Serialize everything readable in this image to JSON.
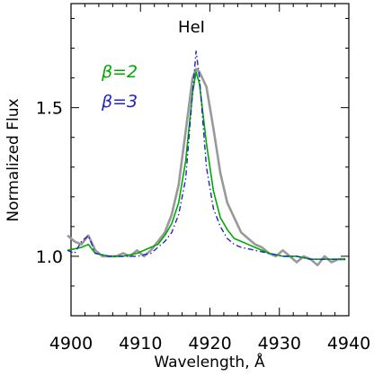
{
  "chart_data": {
    "type": "line",
    "title": "",
    "annotation": "HeI",
    "xlabel": "Wavelength, Å",
    "ylabel": "Normalized Flux",
    "xlim": [
      4900,
      4940
    ],
    "ylim": [
      0.8,
      1.85
    ],
    "x_ticks": [
      4900,
      4910,
      4920,
      4930,
      4940
    ],
    "x_tick_labels": [
      "4900",
      "4910",
      "4920",
      "4930",
      "4940"
    ],
    "y_ticks": [
      1.0,
      1.5
    ],
    "y_tick_labels": [
      "1.0",
      "1.5"
    ],
    "grid": false,
    "legend_position": "top-left",
    "series": [
      {
        "color": "#999999",
        "style": "solid",
        "points": [
          [
            4899.5,
            1.07
          ],
          [
            4900.5,
            1.05
          ],
          [
            4901.5,
            1.04
          ],
          [
            4902.5,
            1.07
          ],
          [
            4903.5,
            1.02
          ],
          [
            4904.5,
            1.0
          ],
          [
            4905.5,
            1.0
          ],
          [
            4906.5,
            1.0
          ],
          [
            4907.5,
            1.01
          ],
          [
            4908.5,
            1.0
          ],
          [
            4909.5,
            1.02
          ],
          [
            4910.5,
            1.0
          ],
          [
            4911.5,
            1.02
          ],
          [
            4912.5,
            1.05
          ],
          [
            4913.5,
            1.08
          ],
          [
            4914.5,
            1.14
          ],
          [
            4915.5,
            1.24
          ],
          [
            4916.5,
            1.42
          ],
          [
            4917.5,
            1.6
          ],
          [
            4918.0,
            1.63
          ],
          [
            4918.5,
            1.62
          ],
          [
            4919.5,
            1.57
          ],
          [
            4920.5,
            1.43
          ],
          [
            4921.5,
            1.28
          ],
          [
            4922.5,
            1.18
          ],
          [
            4923.5,
            1.13
          ],
          [
            4924.5,
            1.08
          ],
          [
            4925.5,
            1.06
          ],
          [
            4926.5,
            1.04
          ],
          [
            4927.5,
            1.03
          ],
          [
            4928.5,
            1.01
          ],
          [
            4929.5,
            1.0
          ],
          [
            4930.5,
            1.02
          ],
          [
            4931.5,
            1.0
          ],
          [
            4932.5,
            0.98
          ],
          [
            4933.5,
            1.0
          ],
          [
            4934.5,
            0.99
          ],
          [
            4935.5,
            0.97
          ],
          [
            4936.5,
            1.0
          ],
          [
            4937.5,
            0.98
          ],
          [
            4938.5,
            0.99
          ],
          [
            4939.5,
            0.99
          ]
        ]
      },
      {
        "name": "β=2",
        "color": "#00aa00",
        "style": "solid",
        "points": [
          [
            4899.5,
            1.02
          ],
          [
            4901.5,
            1.03
          ],
          [
            4902.5,
            1.04
          ],
          [
            4903.5,
            1.01
          ],
          [
            4905.5,
            1.0
          ],
          [
            4907.5,
            1.0
          ],
          [
            4909.5,
            1.01
          ],
          [
            4911.5,
            1.03
          ],
          [
            4912.5,
            1.04
          ],
          [
            4913.5,
            1.07
          ],
          [
            4914.5,
            1.11
          ],
          [
            4915.5,
            1.18
          ],
          [
            4916.5,
            1.32
          ],
          [
            4917.5,
            1.55
          ],
          [
            4918.0,
            1.62
          ],
          [
            4918.5,
            1.58
          ],
          [
            4919.5,
            1.38
          ],
          [
            4920.5,
            1.22
          ],
          [
            4921.5,
            1.13
          ],
          [
            4922.5,
            1.09
          ],
          [
            4923.5,
            1.06
          ],
          [
            4924.5,
            1.05
          ],
          [
            4925.5,
            1.04
          ],
          [
            4926.5,
            1.03
          ],
          [
            4928.5,
            1.01
          ],
          [
            4930.5,
            1.0
          ],
          [
            4932.5,
            1.0
          ],
          [
            4934.5,
            0.99
          ],
          [
            4936.5,
            0.99
          ],
          [
            4939.5,
            0.99
          ]
        ]
      },
      {
        "name": "β=3",
        "color": "#2222cc",
        "style": "dashdot",
        "points": [
          [
            4899.5,
            1.02
          ],
          [
            4900.5,
            1.01
          ],
          [
            4901.5,
            1.05
          ],
          [
            4902.5,
            1.07
          ],
          [
            4903.5,
            1.01
          ],
          [
            4905.5,
            1.0
          ],
          [
            4907.5,
            1.0
          ],
          [
            4909.5,
            1.0
          ],
          [
            4911.5,
            1.01
          ],
          [
            4912.5,
            1.03
          ],
          [
            4913.5,
            1.05
          ],
          [
            4914.5,
            1.08
          ],
          [
            4915.5,
            1.14
          ],
          [
            4916.5,
            1.26
          ],
          [
            4917.5,
            1.55
          ],
          [
            4918.0,
            1.69
          ],
          [
            4918.5,
            1.6
          ],
          [
            4919.5,
            1.3
          ],
          [
            4920.5,
            1.16
          ],
          [
            4921.5,
            1.1
          ],
          [
            4922.5,
            1.06
          ],
          [
            4923.5,
            1.04
          ],
          [
            4924.5,
            1.03
          ],
          [
            4926.5,
            1.02
          ],
          [
            4928.5,
            1.01
          ],
          [
            4930.5,
            1.0
          ],
          [
            4932.5,
            1.0
          ],
          [
            4934.5,
            0.99
          ],
          [
            4936.5,
            0.99
          ],
          [
            4939.5,
            0.99
          ]
        ]
      }
    ]
  }
}
